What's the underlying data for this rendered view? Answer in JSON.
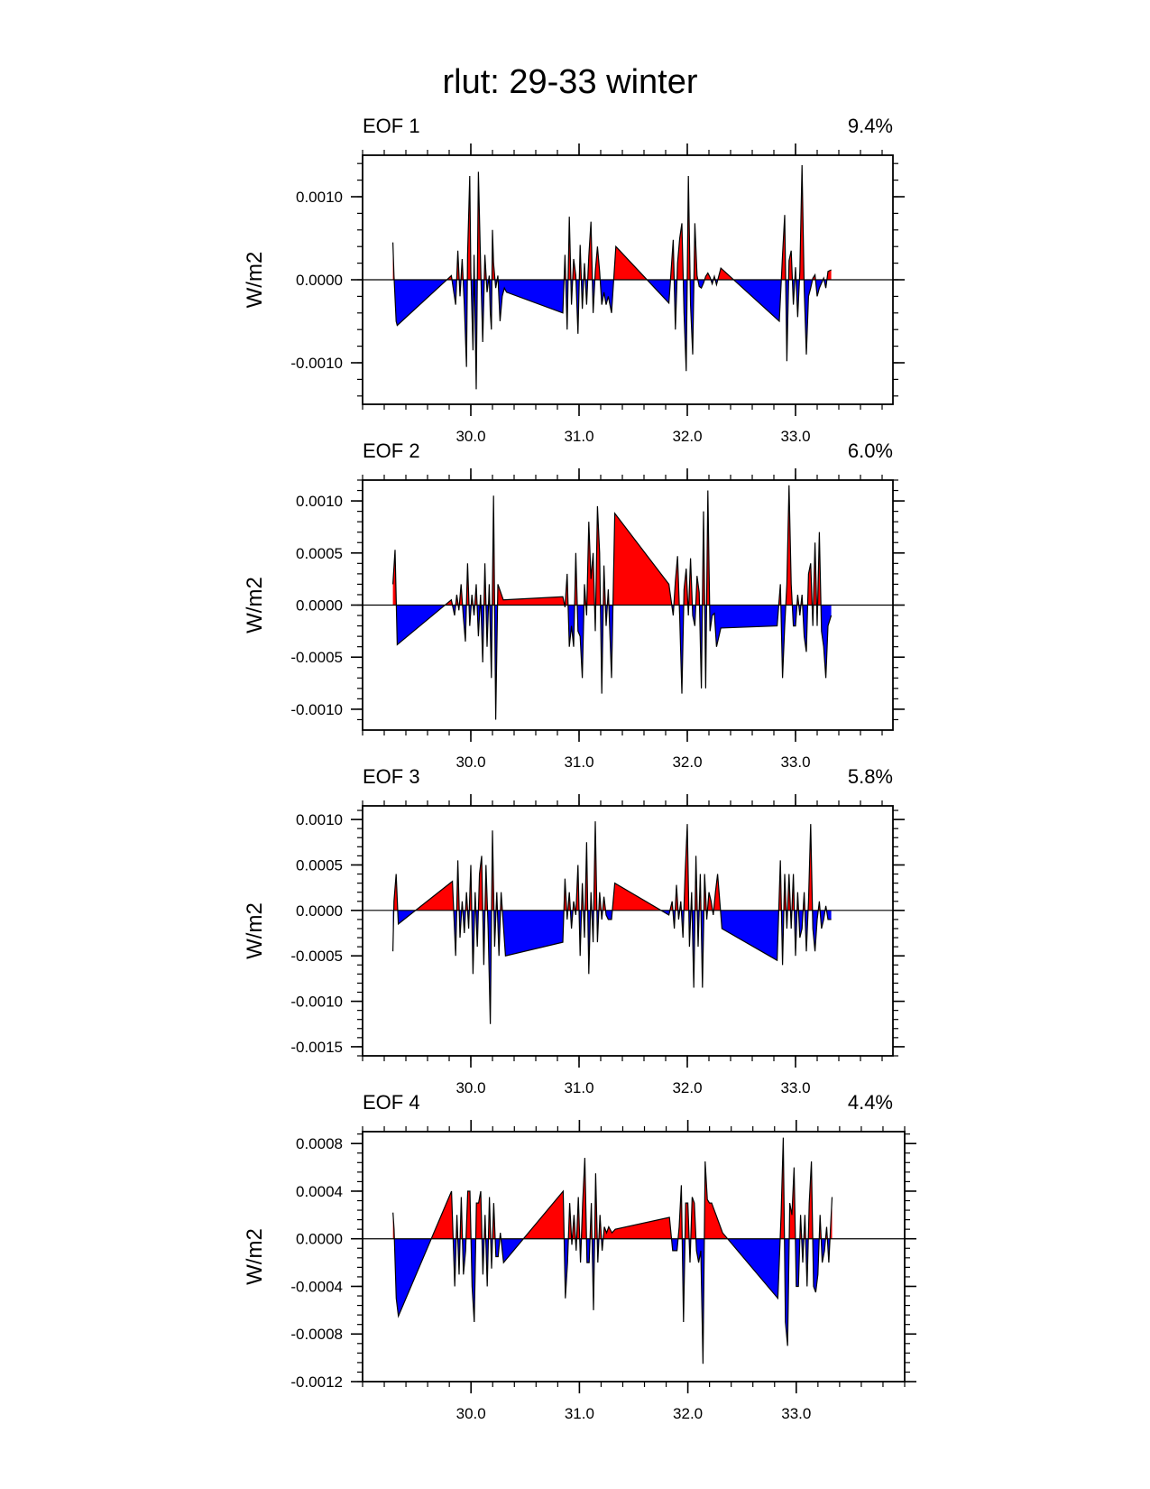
{
  "title": "rlut: 29-33 winter",
  "colors": {
    "positive": "#ff0000",
    "negative": "#0000ff",
    "line": "#000000"
  },
  "chart_data": [
    {
      "type": "area",
      "label": "EOF 1",
      "percent": "9.4%",
      "ylabel": "W/m2",
      "xlim": [
        29.0,
        33.9
      ],
      "ylim": [
        -0.0015,
        0.0015
      ],
      "yticks": [
        -0.001,
        0.0,
        0.001
      ],
      "ytick_labels": [
        "-0.0010",
        "0.0000",
        "0.0010"
      ],
      "xticks": [
        30.0,
        31.0,
        32.0,
        33.0
      ],
      "xtick_labels": [
        "30.0",
        "31.0",
        "32.0",
        "33.0"
      ],
      "x": [
        29.28,
        29.29,
        29.31,
        29.32,
        29.82,
        29.86,
        29.88,
        29.9,
        29.92,
        29.94,
        29.96,
        29.97,
        29.99,
        30.0,
        30.02,
        30.03,
        30.05,
        30.07,
        30.09,
        30.11,
        30.13,
        30.15,
        30.17,
        30.18,
        30.19,
        30.2,
        30.21,
        30.23,
        30.25,
        30.27,
        30.29,
        30.31,
        30.33,
        30.85,
        30.87,
        30.89,
        30.91,
        30.93,
        30.95,
        30.97,
        30.99,
        31.01,
        31.03,
        31.05,
        31.07,
        31.09,
        31.11,
        31.13,
        31.15,
        31.17,
        31.19,
        31.21,
        31.23,
        31.25,
        31.27,
        31.3,
        31.34,
        31.83,
        31.87,
        31.89,
        31.91,
        31.93,
        31.95,
        31.97,
        31.99,
        32.01,
        32.03,
        32.05,
        32.07,
        32.09,
        32.11,
        32.13,
        32.15,
        32.17,
        32.19,
        32.21,
        32.23,
        32.25,
        32.27,
        32.31,
        32.85,
        32.88,
        32.9,
        32.92,
        32.94,
        32.96,
        32.98,
        33.0,
        33.02,
        33.04,
        33.06,
        33.08,
        33.1,
        33.12,
        33.14,
        33.16,
        33.18,
        33.2,
        33.22,
        33.24,
        33.26,
        33.28,
        33.3,
        33.33
      ],
      "values": [
        0.00045,
        5e-05,
        -0.0005,
        -0.00055,
        5e-05,
        -0.0003,
        0.00035,
        -0.0002,
        0.00025,
        -0.0003,
        -0.00105,
        0.0003,
        0.00125,
        0.0001,
        -0.00085,
        0.0003,
        -0.00132,
        0.0013,
        0.0002,
        -0.00075,
        0.0003,
        -0.00015,
        5e-05,
        -0.0004,
        -0.0006,
        0.0006,
        0.0002,
        -0.0001,
        5e-05,
        -0.0005,
        -0.0002,
        -0.0001,
        -0.00015,
        -0.0004,
        0.0003,
        -0.0006,
        0.00076,
        -0.0003,
        0.00025,
        5e-05,
        -0.00065,
        0.00042,
        -0.00035,
        0.0002,
        -0.0003,
        0.00028,
        0.0007,
        -0.0004,
        0.0001,
        0.0004,
        0.0001,
        -0.0003,
        -0.00015,
        -0.0003,
        -0.0002,
        -0.0004,
        0.0004,
        -0.00028,
        0.00048,
        -0.0006,
        0.0002,
        0.0005,
        0.00068,
        -0.0004,
        -0.0011,
        0.00125,
        -0.0003,
        -0.0009,
        0.00068,
        5e-05,
        -8e-05,
        -0.0001,
        -4e-05,
        4e-05,
        8e-05,
        3e-05,
        -5e-05,
        4e-05,
        -6e-05,
        0.00014,
        -0.0005,
        0.0003,
        0.00078,
        -0.00098,
        0.00023,
        0.00035,
        -0.0003,
        0.00015,
        -0.00045,
        0.0001,
        0.00138,
        -0.0001,
        -0.0009,
        -0.0002,
        -0.0001,
        2e-05,
        6e-05,
        -0.0002,
        -0.0001,
        -4e-05,
        2e-05,
        -0.0001,
        0.0001,
        0.00012
      ]
    },
    {
      "type": "area",
      "label": "EOF 2",
      "percent": "6.0%",
      "ylabel": "W/m2",
      "xlim": [
        29.0,
        33.9
      ],
      "ylim": [
        -0.0012,
        0.0012
      ],
      "yticks": [
        -0.001,
        -0.0005,
        0.0,
        0.0005,
        0.001
      ],
      "ytick_labels": [
        "-0.0010",
        "-0.0005",
        "0.0000",
        "0.0005",
        "0.0010"
      ],
      "xticks": [
        30.0,
        31.0,
        32.0,
        33.0
      ],
      "xtick_labels": [
        "30.0",
        "31.0",
        "32.0",
        "33.0"
      ],
      "x": [
        29.28,
        29.3,
        29.32,
        29.82,
        29.85,
        29.87,
        29.89,
        29.91,
        29.93,
        29.95,
        29.97,
        29.99,
        30.01,
        30.03,
        30.05,
        30.07,
        30.09,
        30.11,
        30.13,
        30.15,
        30.17,
        30.19,
        30.21,
        30.23,
        30.25,
        30.3,
        30.85,
        30.87,
        30.89,
        30.91,
        30.93,
        30.95,
        30.97,
        30.99,
        31.01,
        31.03,
        31.05,
        31.07,
        31.09,
        31.11,
        31.13,
        31.15,
        31.17,
        31.19,
        31.21,
        31.23,
        31.25,
        31.27,
        31.3,
        31.33,
        31.83,
        31.87,
        31.89,
        31.91,
        31.93,
        31.95,
        31.97,
        31.99,
        32.01,
        32.03,
        32.05,
        32.07,
        32.09,
        32.11,
        32.13,
        32.15,
        32.17,
        32.19,
        32.21,
        32.23,
        32.25,
        32.27,
        32.31,
        32.83,
        32.86,
        32.88,
        32.9,
        32.92,
        32.94,
        32.96,
        32.98,
        33.0,
        33.02,
        33.04,
        33.06,
        33.08,
        33.1,
        33.12,
        33.14,
        33.16,
        33.18,
        33.2,
        33.22,
        33.24,
        33.26,
        33.28,
        33.3,
        33.33
      ],
      "values": [
        0.0002,
        0.00053,
        -0.00038,
        5e-05,
        -0.0001,
        0.0001,
        -5e-05,
        0.0002,
        -0.0001,
        -0.00035,
        0.0004,
        -0.0002,
        0.0001,
        -0.0001,
        0.0002,
        -0.0003,
        0.0001,
        -0.00055,
        0.0004,
        -0.0004,
        0.0002,
        -0.0007,
        0.00105,
        -0.0011,
        0.0002,
        5e-05,
        8e-05,
        -2e-05,
        0.0003,
        -0.0004,
        -0.0002,
        -0.0004,
        0.0005,
        -0.00025,
        -0.0003,
        -0.0007,
        0.0002,
        -0.0001,
        0.0008,
        0.00025,
        0.0005,
        -0.00025,
        0.00095,
        0.0005,
        -0.00085,
        0.00038,
        -0.0002,
        0.00015,
        -0.0007,
        0.00088,
        0.0002,
        -0.0001,
        0.00023,
        0.00047,
        -0.00012,
        -0.00085,
        0.00015,
        0.00035,
        -0.0001,
        0.00045,
        -0.0001,
        -0.0002,
        0.00028,
        0.00012,
        -0.0008,
        0.0009,
        -0.0008,
        0.0011,
        -0.00025,
        -0.0001,
        -8e-05,
        -0.0004,
        -0.00022,
        -0.0002,
        0.0002,
        -0.0007,
        -0.0002,
        0.0002,
        0.00115,
        0.0002,
        -0.0002,
        -0.0002,
        0.0001,
        -0.0001,
        0.0001,
        -0.0003,
        -0.00045,
        0.0003,
        0.0004,
        -0.0002,
        0.0006,
        -0.0002,
        0.0007,
        -0.00025,
        -0.0004,
        -0.0007,
        -0.0002,
        -0.0001
      ],
      "x_note": "",
      "y_note": ""
    },
    {
      "type": "area",
      "label": "EOF 3",
      "percent": "5.8%",
      "ylabel": "W/m2",
      "xlim": [
        29.0,
        33.9
      ],
      "ylim": [
        -0.0016,
        0.00115
      ],
      "yticks": [
        -0.0015,
        -0.001,
        -0.0005,
        0.0,
        0.0005,
        0.001
      ],
      "ytick_labels": [
        "-0.0015",
        "-0.0010",
        "-0.0005",
        "0.0000",
        "0.0005",
        "0.0010"
      ],
      "xticks": [
        30.0,
        31.0,
        32.0,
        33.0
      ],
      "xtick_labels": [
        "30.0",
        "31.0",
        "32.0",
        "33.0"
      ],
      "x": [
        29.28,
        29.29,
        29.31,
        29.33,
        29.83,
        29.86,
        29.88,
        29.9,
        29.92,
        29.94,
        29.96,
        29.98,
        30.0,
        30.02,
        30.04,
        30.06,
        30.08,
        30.1,
        30.12,
        30.14,
        30.16,
        30.18,
        30.2,
        30.22,
        30.24,
        30.26,
        30.28,
        30.32,
        30.85,
        30.87,
        30.89,
        30.91,
        30.93,
        30.95,
        30.97,
        30.99,
        31.01,
        31.03,
        31.05,
        31.07,
        31.09,
        31.11,
        31.13,
        31.15,
        31.17,
        31.19,
        31.21,
        31.23,
        31.25,
        31.27,
        31.3,
        31.33,
        31.83,
        31.86,
        31.88,
        31.9,
        31.92,
        31.94,
        31.96,
        31.98,
        32.0,
        32.02,
        32.04,
        32.06,
        32.08,
        32.1,
        32.12,
        32.14,
        32.16,
        32.18,
        32.2,
        32.22,
        32.24,
        32.26,
        32.28,
        32.32,
        32.83,
        32.86,
        32.88,
        32.9,
        32.92,
        32.94,
        32.96,
        32.98,
        33.0,
        33.02,
        33.04,
        33.06,
        33.08,
        33.1,
        33.12,
        33.14,
        33.16,
        33.18,
        33.2,
        33.22,
        33.24,
        33.26,
        33.28,
        33.3,
        33.33
      ],
      "values": [
        -0.00045,
        0.0001,
        0.0004,
        -0.00015,
        0.00032,
        -0.0005,
        0.00055,
        -0.0003,
        0.0001,
        -0.00025,
        0.0002,
        -0.0002,
        0.0005,
        -0.0007,
        0.0002,
        -0.0004,
        0.0004,
        0.0006,
        -0.0006,
        0.0005,
        -0.0002,
        -0.00125,
        0.00088,
        -0.0004,
        0.0002,
        -0.0005,
        0.0002,
        -0.0005,
        -0.00035,
        0.00035,
        -0.0001,
        0.0002,
        -0.0002,
        0.0001,
        -5e-05,
        0.0005,
        -0.0005,
        0.0003,
        -0.0003,
        0.00075,
        -0.0007,
        0.0002,
        -0.00035,
        0.00098,
        -0.00035,
        0.0002,
        -0.0001,
        0.00015,
        -5e-05,
        -0.0001,
        -0.0001,
        0.0003,
        -5e-05,
        0.0001,
        -0.0002,
        0.00028,
        -0.0001,
        0.0001,
        -0.0003,
        0.0004,
        0.00095,
        -0.0004,
        0.0002,
        -0.00085,
        0.0006,
        -0.0004,
        0.0004,
        -0.00085,
        0.0004,
        -0.0001,
        0.0002,
        0.0001,
        -5e-05,
        0.0002,
        0.0004,
        -0.0002,
        -0.00055,
        0.00055,
        -0.0006,
        0.0004,
        -0.0002,
        0.0004,
        -0.0002,
        0.0004,
        -0.0005,
        0.0002,
        -0.0003,
        -0.0002,
        0.0002,
        -0.00045,
        0.0001,
        0.00095,
        -0.0002,
        -0.00045,
        -0.0001,
        0.0001,
        -0.0002,
        -0.0001,
        5e-05,
        -0.0001,
        -0.0001
      ]
    },
    {
      "type": "area",
      "label": "EOF 4",
      "percent": "4.4%",
      "ylabel": "W/m2",
      "xlim": [
        29.0,
        34.0
      ],
      "ylim": [
        -0.0012,
        0.0009
      ],
      "yticks": [
        -0.0012,
        -0.0008,
        -0.0004,
        0.0,
        0.0004,
        0.0008
      ],
      "ytick_labels": [
        "-0.0012",
        "-0.0008",
        "-0.0004",
        "0.0000",
        "0.0004",
        "0.0008"
      ],
      "xticks": [
        30.0,
        31.0,
        32.0,
        33.0
      ],
      "xtick_labels": [
        "30.0",
        "31.0",
        "32.0",
        "33.0"
      ],
      "x": [
        29.28,
        29.29,
        29.31,
        29.33,
        29.82,
        29.85,
        29.87,
        29.89,
        29.91,
        29.93,
        29.95,
        29.97,
        29.99,
        30.01,
        30.03,
        30.05,
        30.07,
        30.09,
        30.11,
        30.13,
        30.15,
        30.17,
        30.19,
        30.21,
        30.23,
        30.25,
        30.27,
        30.3,
        30.85,
        30.87,
        30.89,
        30.91,
        30.93,
        30.95,
        30.97,
        30.99,
        31.01,
        31.03,
        31.05,
        31.07,
        31.09,
        31.11,
        31.13,
        31.15,
        31.17,
        31.19,
        31.21,
        31.23,
        31.25,
        31.27,
        31.3,
        31.33,
        31.83,
        31.86,
        31.88,
        31.9,
        31.92,
        31.94,
        31.96,
        31.98,
        32.0,
        32.02,
        32.04,
        32.06,
        32.08,
        32.1,
        32.12,
        32.14,
        32.16,
        32.18,
        32.2,
        32.22,
        32.24,
        32.26,
        32.28,
        32.32,
        32.83,
        32.86,
        32.88,
        32.9,
        32.92,
        32.94,
        32.96,
        32.98,
        33.0,
        33.02,
        33.04,
        33.06,
        33.08,
        33.1,
        33.12,
        33.14,
        33.16,
        33.18,
        33.2,
        33.22,
        33.24,
        33.26,
        33.28,
        33.3,
        33.33
      ],
      "values": [
        0.00022,
        8e-05,
        -0.0005,
        -0.00065,
        0.0004,
        -0.0004,
        0.0002,
        -0.0003,
        0.00035,
        -0.0003,
        -0.0001,
        0.0004,
        0.0004,
        -0.0004,
        -0.0007,
        0.0003,
        0.0003,
        0.0004,
        -0.0003,
        0.0002,
        -0.0004,
        0.00035,
        -0.00025,
        0.0003,
        -0.00015,
        -0.00015,
        5e-05,
        -0.0002,
        0.0004,
        -0.0005,
        -0.0002,
        0.0003,
        -5e-05,
        0.0002,
        -0.0001,
        0.00035,
        -0.0002,
        0.0003,
        0.00068,
        -0.0002,
        -0.0002,
        0.0003,
        -0.0006,
        0.00055,
        -0.0002,
        0.0002,
        -0.0001,
        0.0001,
        5e-05,
        0.0001,
        5e-05,
        8e-05,
        0.00018,
        -0.0001,
        -0.0001,
        -0.0001,
        0.0001,
        0.00045,
        -0.0007,
        0.0003,
        0.0003,
        -0.0002,
        0.00035,
        0.0003,
        -0.0001,
        -0.0002,
        -0.0001,
        -0.00105,
        0.00065,
        0.00033,
        0.0003,
        0.0003,
        0.00025,
        0.0002,
        0.00015,
        5e-05,
        -0.0005,
        0.0002,
        0.00085,
        -0.0007,
        -0.0009,
        0.0003,
        0.0002,
        0.0006,
        -0.0004,
        -0.0004,
        0.0002,
        -0.0002,
        0.0002,
        -0.0004,
        0.0003,
        0.00065,
        -0.0004,
        -0.00045,
        -0.0003,
        0.0002,
        -0.0002,
        -0.0001,
        0.0001,
        -0.0002,
        0.00035
      ]
    }
  ]
}
